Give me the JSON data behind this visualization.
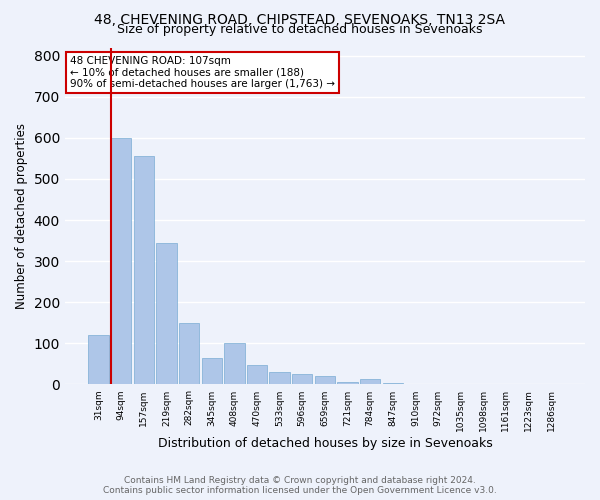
{
  "title1": "48, CHEVENING ROAD, CHIPSTEAD, SEVENOAKS, TN13 2SA",
  "title2": "Size of property relative to detached houses in Sevenoaks",
  "xlabel": "Distribution of detached houses by size in Sevenoaks",
  "ylabel": "Number of detached properties",
  "categories": [
    "31sqm",
    "94sqm",
    "157sqm",
    "219sqm",
    "282sqm",
    "345sqm",
    "408sqm",
    "470sqm",
    "533sqm",
    "596sqm",
    "659sqm",
    "721sqm",
    "784sqm",
    "847sqm",
    "910sqm",
    "972sqm",
    "1035sqm",
    "1098sqm",
    "1161sqm",
    "1223sqm",
    "1286sqm"
  ],
  "values": [
    120,
    600,
    555,
    345,
    150,
    65,
    100,
    48,
    30,
    25,
    20,
    5,
    14,
    4,
    0,
    0,
    0,
    0,
    0,
    0,
    0
  ],
  "bar_color": "#aec6e8",
  "bar_edge_color": "#7aadd4",
  "vline_color": "#cc0000",
  "annotation_text": "48 CHEVENING ROAD: 107sqm\n← 10% of detached houses are smaller (188)\n90% of semi-detached houses are larger (1,763) →",
  "annotation_box_color": "white",
  "annotation_box_edge_color": "#cc0000",
  "footer1": "Contains HM Land Registry data © Crown copyright and database right 2024.",
  "footer2": "Contains public sector information licensed under the Open Government Licence v3.0.",
  "ylim": [
    0,
    820
  ],
  "yticks": [
    0,
    100,
    200,
    300,
    400,
    500,
    600,
    700,
    800
  ],
  "bg_color": "#eef2fb",
  "plot_bg_color": "#eef2fb",
  "grid_color": "#ffffff",
  "title1_fontsize": 10,
  "title2_fontsize": 9,
  "xlabel_fontsize": 9,
  "ylabel_fontsize": 8.5,
  "tick_fontsize": 6.5,
  "footer_fontsize": 6.5,
  "annot_fontsize": 7.5
}
